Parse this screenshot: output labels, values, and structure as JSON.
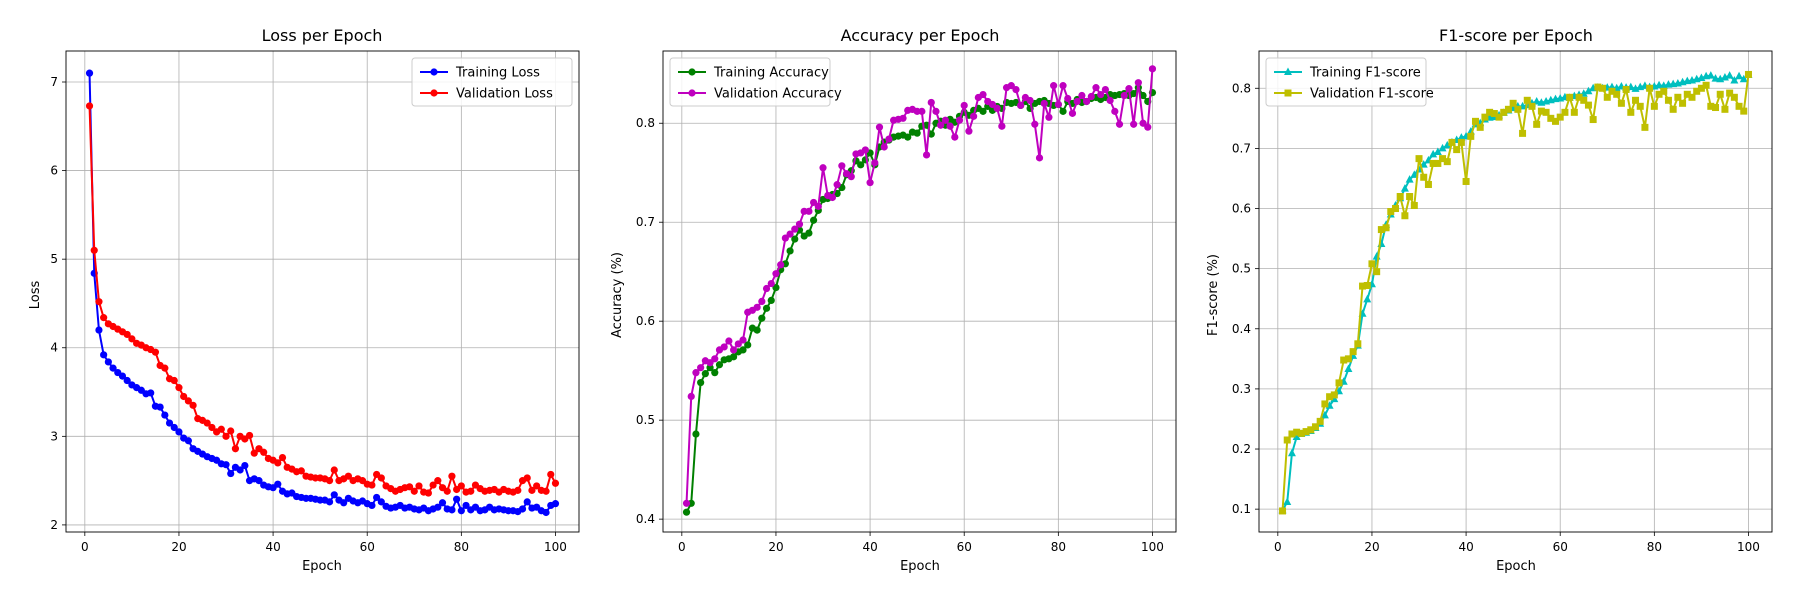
{
  "figure": {
    "background": "#ffffff"
  },
  "chart_data": [
    {
      "type": "line",
      "title": "Loss per Epoch",
      "xlabel": "Epoch",
      "ylabel": "Loss",
      "xlim": [
        -4,
        105
      ],
      "ylim": [
        1.92,
        7.35
      ],
      "xticks": [
        0,
        20,
        40,
        60,
        80,
        100
      ],
      "yticks": [
        2,
        3,
        4,
        5,
        6,
        7
      ],
      "grid": true,
      "legend_position": "upper right",
      "series": [
        {
          "name": "Training Loss",
          "color": "#0000ff",
          "marker": "circle",
          "x_start": 1,
          "values": [
            7.1,
            4.84,
            4.2,
            3.92,
            3.84,
            3.77,
            3.72,
            3.68,
            3.63,
            3.58,
            3.55,
            3.52,
            3.48,
            3.49,
            3.34,
            3.33,
            3.24,
            3.15,
            3.1,
            3.05,
            2.98,
            2.95,
            2.86,
            2.83,
            2.8,
            2.77,
            2.75,
            2.73,
            2.69,
            2.68,
            2.58,
            2.65,
            2.62,
            2.67,
            2.5,
            2.52,
            2.5,
            2.45,
            2.43,
            2.42,
            2.46,
            2.38,
            2.35,
            2.36,
            2.32,
            2.31,
            2.3,
            2.3,
            2.29,
            2.28,
            2.28,
            2.26,
            2.34,
            2.28,
            2.25,
            2.3,
            2.27,
            2.25,
            2.27,
            2.24,
            2.22,
            2.31,
            2.26,
            2.21,
            2.19,
            2.2,
            2.22,
            2.19,
            2.2,
            2.18,
            2.17,
            2.19,
            2.16,
            2.18,
            2.2,
            2.25,
            2.18,
            2.17,
            2.29,
            2.16,
            2.22,
            2.17,
            2.2,
            2.16,
            2.17,
            2.2,
            2.17,
            2.18,
            2.17,
            2.16,
            2.16,
            2.15,
            2.18,
            2.26,
            2.19,
            2.2,
            2.16,
            2.14,
            2.22,
            2.24
          ]
        },
        {
          "name": "Validation Loss",
          "color": "#ff0000",
          "marker": "circle",
          "x_start": 1,
          "values": [
            6.73,
            5.1,
            4.52,
            4.34,
            4.27,
            4.24,
            4.21,
            4.18,
            4.15,
            4.1,
            4.05,
            4.03,
            4.0,
            3.98,
            3.95,
            3.8,
            3.77,
            3.65,
            3.63,
            3.55,
            3.45,
            3.4,
            3.35,
            3.2,
            3.18,
            3.15,
            3.1,
            3.05,
            3.08,
            3.0,
            3.06,
            2.86,
            3.0,
            2.97,
            3.01,
            2.81,
            2.86,
            2.82,
            2.75,
            2.73,
            2.7,
            2.76,
            2.65,
            2.63,
            2.6,
            2.61,
            2.55,
            2.54,
            2.53,
            2.53,
            2.52,
            2.5,
            2.62,
            2.5,
            2.52,
            2.55,
            2.5,
            2.52,
            2.5,
            2.46,
            2.45,
            2.57,
            2.53,
            2.44,
            2.41,
            2.38,
            2.4,
            2.42,
            2.43,
            2.38,
            2.44,
            2.37,
            2.36,
            2.45,
            2.5,
            2.42,
            2.38,
            2.55,
            2.4,
            2.44,
            2.37,
            2.38,
            2.45,
            2.41,
            2.38,
            2.39,
            2.4,
            2.37,
            2.4,
            2.38,
            2.37,
            2.39,
            2.5,
            2.53,
            2.39,
            2.44,
            2.39,
            2.38,
            2.57,
            2.47
          ]
        }
      ]
    },
    {
      "type": "line",
      "title": "Accuracy per Epoch",
      "xlabel": "Epoch",
      "ylabel": "Accuracy (%)",
      "xlim": [
        -4,
        105
      ],
      "ylim": [
        0.387,
        0.873
      ],
      "xticks": [
        0,
        20,
        40,
        60,
        80,
        100
      ],
      "yticks": [
        0.4,
        0.5,
        0.6,
        0.7,
        0.8
      ],
      "grid": true,
      "legend_position": "upper left",
      "series": [
        {
          "name": "Training Accuracy",
          "color": "#008000",
          "marker": "circle",
          "x_start": 1,
          "values": [
            0.407,
            0.416,
            0.486,
            0.538,
            0.547,
            0.553,
            0.548,
            0.556,
            0.561,
            0.562,
            0.564,
            0.569,
            0.571,
            0.576,
            0.593,
            0.591,
            0.603,
            0.613,
            0.621,
            0.634,
            0.652,
            0.658,
            0.671,
            0.683,
            0.692,
            0.686,
            0.689,
            0.702,
            0.712,
            0.723,
            0.724,
            0.728,
            0.729,
            0.735,
            0.748,
            0.752,
            0.762,
            0.758,
            0.763,
            0.77,
            0.758,
            0.776,
            0.781,
            0.783,
            0.786,
            0.787,
            0.788,
            0.786,
            0.791,
            0.79,
            0.797,
            0.798,
            0.789,
            0.8,
            0.802,
            0.798,
            0.804,
            0.801,
            0.807,
            0.811,
            0.808,
            0.813,
            0.815,
            0.812,
            0.817,
            0.813,
            0.817,
            0.815,
            0.821,
            0.82,
            0.821,
            0.818,
            0.822,
            0.815,
            0.82,
            0.822,
            0.823,
            0.82,
            0.818,
            0.819,
            0.812,
            0.822,
            0.82,
            0.824,
            0.821,
            0.822,
            0.825,
            0.826,
            0.824,
            0.826,
            0.829,
            0.828,
            0.829,
            0.83,
            0.828,
            0.83,
            0.836,
            0.828,
            0.822,
            0.831
          ]
        },
        {
          "name": "Validation Accuracy",
          "color": "#bf00bf",
          "marker": "circle",
          "x_start": 1,
          "values": [
            0.416,
            0.524,
            0.548,
            0.553,
            0.56,
            0.558,
            0.562,
            0.571,
            0.574,
            0.58,
            0.571,
            0.577,
            0.581,
            0.609,
            0.611,
            0.614,
            0.62,
            0.633,
            0.638,
            0.648,
            0.657,
            0.684,
            0.688,
            0.693,
            0.698,
            0.711,
            0.711,
            0.72,
            0.716,
            0.755,
            0.727,
            0.725,
            0.738,
            0.757,
            0.749,
            0.746,
            0.769,
            0.77,
            0.773,
            0.74,
            0.76,
            0.796,
            0.776,
            0.784,
            0.803,
            0.804,
            0.805,
            0.813,
            0.814,
            0.812,
            0.812,
            0.768,
            0.821,
            0.812,
            0.798,
            0.803,
            0.797,
            0.786,
            0.803,
            0.818,
            0.792,
            0.807,
            0.826,
            0.829,
            0.822,
            0.819,
            0.815,
            0.797,
            0.836,
            0.838,
            0.834,
            0.818,
            0.826,
            0.823,
            0.799,
            0.765,
            0.82,
            0.806,
            0.838,
            0.819,
            0.838,
            0.825,
            0.81,
            0.822,
            0.828,
            0.822,
            0.827,
            0.836,
            0.829,
            0.834,
            0.823,
            0.812,
            0.799,
            0.828,
            0.835,
            0.799,
            0.841,
            0.8,
            0.796,
            0.855
          ]
        }
      ]
    },
    {
      "type": "line",
      "title": "F1-score per Epoch",
      "xlabel": "Epoch",
      "ylabel": "F1-score (%)",
      "xlim": [
        -4,
        105
      ],
      "ylim": [
        0.062,
        0.862
      ],
      "xticks": [
        0,
        20,
        40,
        60,
        80,
        100
      ],
      "yticks": [
        0.1,
        0.2,
        0.3,
        0.4,
        0.5,
        0.6,
        0.7,
        0.8
      ],
      "grid": true,
      "legend_position": "upper left",
      "series": [
        {
          "name": "Training F1-score",
          "color": "#00bfbf",
          "marker": "triangle",
          "x_start": 1,
          "values": [
            0.098,
            0.112,
            0.193,
            0.22,
            0.225,
            0.227,
            0.23,
            0.235,
            0.242,
            0.256,
            0.272,
            0.283,
            0.296,
            0.312,
            0.333,
            0.355,
            0.372,
            0.425,
            0.449,
            0.474,
            0.52,
            0.541,
            0.573,
            0.59,
            0.605,
            0.617,
            0.633,
            0.648,
            0.656,
            0.665,
            0.673,
            0.68,
            0.69,
            0.694,
            0.7,
            0.705,
            0.71,
            0.714,
            0.718,
            0.72,
            0.728,
            0.74,
            0.742,
            0.748,
            0.751,
            0.752,
            0.755,
            0.759,
            0.763,
            0.767,
            0.77,
            0.77,
            0.772,
            0.775,
            0.778,
            0.776,
            0.778,
            0.78,
            0.782,
            0.783,
            0.785,
            0.784,
            0.787,
            0.789,
            0.791,
            0.795,
            0.8,
            0.801,
            0.8,
            0.801,
            0.802,
            0.8,
            0.803,
            0.801,
            0.802,
            0.799,
            0.802,
            0.804,
            0.802,
            0.803,
            0.805,
            0.804,
            0.806,
            0.807,
            0.808,
            0.81,
            0.812,
            0.813,
            0.815,
            0.817,
            0.82,
            0.821,
            0.816,
            0.815,
            0.818,
            0.821,
            0.813,
            0.82,
            0.815,
            0.822
          ]
        },
        {
          "name": "Validation F1-score",
          "color": "#bfbf00",
          "marker": "square",
          "x_start": 1,
          "values": [
            0.097,
            0.215,
            0.225,
            0.228,
            0.226,
            0.229,
            0.232,
            0.237,
            0.246,
            0.275,
            0.287,
            0.29,
            0.31,
            0.348,
            0.35,
            0.362,
            0.375,
            0.471,
            0.472,
            0.508,
            0.495,
            0.565,
            0.568,
            0.595,
            0.6,
            0.62,
            0.588,
            0.62,
            0.605,
            0.683,
            0.652,
            0.64,
            0.675,
            0.675,
            0.683,
            0.678,
            0.71,
            0.698,
            0.71,
            0.645,
            0.72,
            0.745,
            0.735,
            0.752,
            0.76,
            0.758,
            0.752,
            0.76,
            0.765,
            0.775,
            0.765,
            0.725,
            0.78,
            0.77,
            0.74,
            0.762,
            0.76,
            0.75,
            0.745,
            0.752,
            0.76,
            0.785,
            0.76,
            0.785,
            0.78,
            0.772,
            0.748,
            0.802,
            0.8,
            0.785,
            0.795,
            0.79,
            0.775,
            0.798,
            0.76,
            0.78,
            0.77,
            0.735,
            0.8,
            0.77,
            0.79,
            0.795,
            0.78,
            0.765,
            0.785,
            0.775,
            0.79,
            0.785,
            0.795,
            0.8,
            0.805,
            0.77,
            0.768,
            0.79,
            0.765,
            0.792,
            0.785,
            0.77,
            0.762,
            0.823
          ]
        }
      ]
    }
  ]
}
